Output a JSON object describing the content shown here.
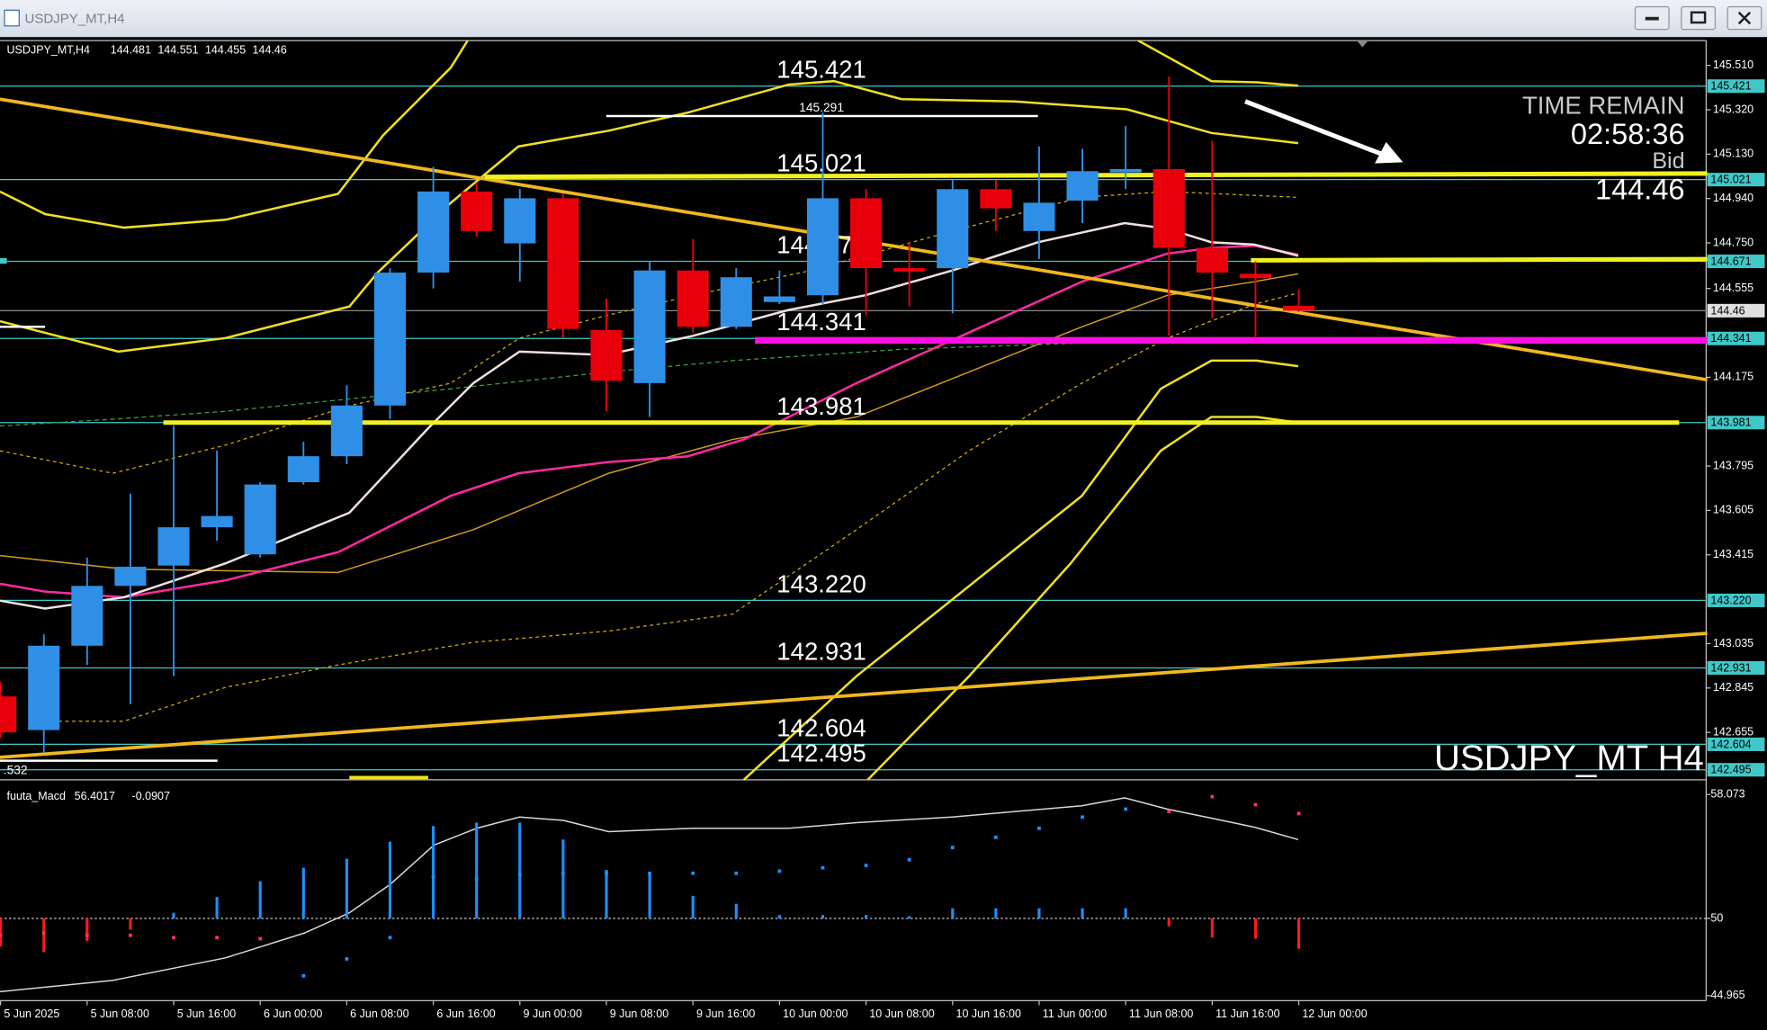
{
  "window": {
    "title": "USDJPY_MT,H4"
  },
  "chart_data": [
    {
      "type": "candlestick",
      "symbol": "USDJPY_MT,H4",
      "watermark": "USDJPY_MT H4",
      "categories": [
        "5 Jun 2025",
        null,
        "5 Jun 08:00",
        null,
        "5 Jun 16:00",
        null,
        "6 Jun 00:00",
        null,
        "6 Jun 08:00",
        null,
        "6 Jun 16:00",
        null,
        "9 Jun 00:00",
        null,
        "9 Jun 08:00",
        null,
        "9 Jun 16:00",
        null,
        "10 Jun 00:00",
        null,
        "10 Jun 08:00",
        null,
        "10 Jun 16:00",
        null,
        "11 Jun 00:00",
        null,
        "11 Jun 08:00",
        null,
        "11 Jun 16:00",
        null,
        "12 Jun 00:00"
      ],
      "open": [
        142.809,
        142.665,
        143.026,
        143.282,
        143.369,
        143.533,
        143.417,
        143.726,
        143.837,
        144.054,
        144.623,
        144.97,
        144.748,
        144.941,
        144.377,
        144.15,
        144.632,
        144.391,
        144.497,
        144.526,
        144.941,
        144.642,
        144.642,
        144.98,
        144.801,
        144.931,
        145.052,
        145.066,
        144.729,
        144.618,
        144.481
      ],
      "high": [
        142.872,
        143.075,
        143.403,
        143.677,
        143.967,
        143.861,
        143.726,
        143.899,
        144.14,
        144.642,
        145.076,
        145.009,
        144.98,
        144.96,
        144.512,
        144.671,
        144.767,
        144.642,
        144.632,
        145.307,
        144.98,
        144.753,
        145.018,
        145.018,
        145.163,
        145.153,
        145.25,
        145.462,
        145.187,
        144.671,
        144.551
      ],
      "low": [
        142.631,
        142.568,
        142.944,
        142.776,
        142.896,
        143.475,
        143.403,
        143.716,
        143.803,
        143.996,
        144.555,
        144.777,
        144.584,
        144.343,
        144.03,
        144.005,
        144.367,
        144.382,
        144.488,
        144.488,
        144.439,
        144.478,
        144.449,
        144.801,
        144.681,
        144.835,
        144.98,
        144.353,
        144.43,
        144.343,
        144.455
      ],
      "close": [
        142.655,
        143.026,
        143.282,
        143.364,
        143.533,
        143.581,
        143.716,
        143.837,
        144.054,
        144.623,
        144.97,
        144.801,
        144.941,
        144.382,
        144.16,
        144.632,
        144.391,
        144.603,
        144.521,
        144.941,
        144.642,
        144.627,
        144.98,
        144.898,
        144.922,
        145.057,
        145.066,
        144.729,
        144.623,
        144.599,
        144.46
      ],
      "up_color": "#2f8fe6",
      "down_color": "#e8000b",
      "ylim": [
        142.452,
        145.616
      ],
      "yticks": [
        {
          "value": 145.51,
          "label": "145.510"
        },
        {
          "value": 145.32,
          "label": "145.320"
        },
        {
          "value": 145.13,
          "label": "145.130"
        },
        {
          "value": 144.94,
          "label": "144.940"
        },
        {
          "value": 144.75,
          "label": "144.750"
        },
        144.555,
        144.175,
        143.795,
        143.605,
        143.415,
        143.035,
        142.845,
        142.655
      ],
      "levels": [
        145.421,
        145.021,
        144.671,
        144.341,
        143.981,
        {
          "value": 143.22,
          "label": "143.220"
        },
        142.931,
        142.604,
        142.495
      ],
      "level_color": "#40c8c8",
      "annotation": 145.291,
      "left_label": ".532",
      "time_remain": {
        "label": "TIME REMAIN",
        "value": "02:58:36"
      },
      "bid": {
        "label": "Bid",
        "value": 144.46
      }
    },
    {
      "type": "macd",
      "name": "fuuta_Macd",
      "values_shown": [
        56.4017,
        -0.0907
      ],
      "histogram": [
        48.17,
        47.8,
        48.53,
        49.27,
        50.37,
        51.39,
        52.42,
        53.3,
        53.89,
        54.99,
        56.02,
        56.24,
        56.24,
        55.14,
        53.16,
        52.94,
        51.47,
        50.95,
        50.22,
        50.22,
        50.22,
        50.15,
        50.66,
        50.66,
        50.66,
        50.66,
        50.66,
        49.49,
        48.75,
        48.68,
        48.02
      ],
      "signal": [
        48.9,
        49.05,
        48.9,
        48.9,
        48.75,
        48.75,
        48.68,
        46.26,
        47.36,
        48.75,
        52.72,
        52.57,
        52.86,
        52.94,
        52.94,
        52.94,
        52.94,
        52.94,
        53.08,
        53.3,
        53.45,
        53.82,
        54.62,
        55.28,
        55.87,
        56.6,
        57.12,
        56.97,
        57.93,
        57.41,
        56.83
      ],
      "signal_colors": [
        "#ff3366",
        "#ff3366",
        "#ff3366",
        "#ff3366",
        "#ff3366",
        "#ff3366",
        "#ff3366",
        "#1e90ff",
        "#1e90ff",
        "#1e90ff",
        "#1e90ff",
        "#1e90ff",
        "#1e90ff",
        "#1e90ff",
        "#1e90ff",
        "#1e90ff",
        "#1e90ff",
        "#1e90ff",
        "#1e90ff",
        "#1e90ff",
        "#1e90ff",
        "#1e90ff",
        "#1e90ff",
        "#1e90ff",
        "#1e90ff",
        "#1e90ff",
        "#1e90ff",
        "#ff3366",
        "#ff3366",
        "#ff3366",
        "#ff3366"
      ],
      "baseline": 50,
      "up_color": "#1e90ff",
      "down_color": "#ff1a1a",
      "ylim": [
        44.64,
        58.66
      ],
      "yticks": [
        58.073,
        50,
        44.965
      ]
    }
  ]
}
